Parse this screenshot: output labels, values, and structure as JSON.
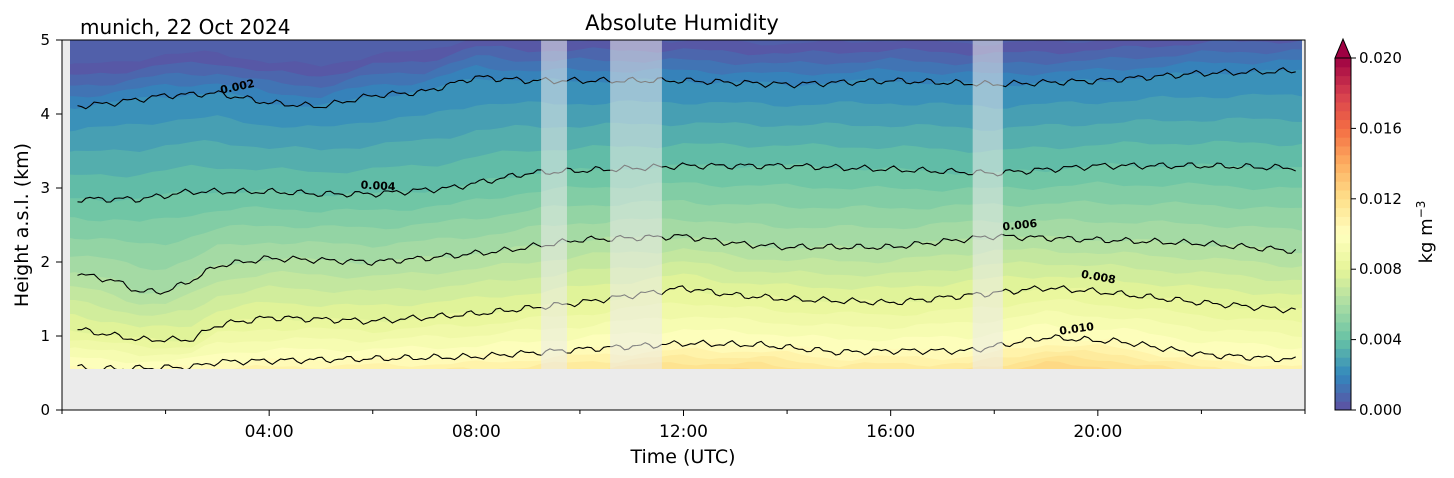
{
  "chart_data": {
    "type": "heatmap",
    "subtype": "filled-contour",
    "title": "Absolute Humidity",
    "location_date": "munich, 22 Oct 2024",
    "xlabel": "Time (UTC)",
    "ylabel": "Height a.s.l. (km)",
    "xlim": [
      "00:00",
      "24:00"
    ],
    "xticks": [
      "04:00",
      "08:00",
      "12:00",
      "16:00",
      "20:00"
    ],
    "ylim": [
      0,
      5
    ],
    "yticks": [
      "0",
      "1",
      "2",
      "3",
      "4",
      "5"
    ],
    "data_bottom_km": 0.55,
    "colorbar": {
      "label": "kg m",
      "label_exponent": "−3",
      "range": [
        0.0,
        0.02
      ],
      "ticks": [
        "0.000",
        "0.004",
        "0.008",
        "0.012",
        "0.016",
        "0.020"
      ],
      "colormap": "Spectral_r",
      "extend": "max"
    },
    "contour_labels": [
      "0.002",
      "0.004",
      "0.006",
      "0.008",
      "0.010"
    ],
    "contour_levels": [
      {
        "level": "0.002",
        "height_km": [
          [
            0.2,
            4.1
          ],
          [
            1.0,
            4.15
          ],
          [
            2.0,
            4.25
          ],
          [
            3.0,
            4.28
          ],
          [
            4.0,
            4.15
          ],
          [
            5.0,
            4.1
          ],
          [
            6.0,
            4.25
          ],
          [
            7.0,
            4.3
          ],
          [
            8.0,
            4.5
          ],
          [
            9.0,
            4.45
          ],
          [
            12.0,
            4.45
          ],
          [
            14.0,
            4.4
          ],
          [
            16.0,
            4.45
          ],
          [
            18.0,
            4.4
          ],
          [
            20.0,
            4.45
          ],
          [
            22.0,
            4.55
          ],
          [
            23.8,
            4.58
          ]
        ]
      },
      {
        "level": "0.004",
        "height_km": [
          [
            0.2,
            2.85
          ],
          [
            1.5,
            2.85
          ],
          [
            2.5,
            2.95
          ],
          [
            4.0,
            2.95
          ],
          [
            5.0,
            2.92
          ],
          [
            6.0,
            2.92
          ],
          [
            7.5,
            3.0
          ],
          [
            9.0,
            3.2
          ],
          [
            10.5,
            3.25
          ],
          [
            12.0,
            3.3
          ],
          [
            14.0,
            3.3
          ],
          [
            16.0,
            3.25
          ],
          [
            18.0,
            3.2
          ],
          [
            20.0,
            3.3
          ],
          [
            22.0,
            3.3
          ],
          [
            23.8,
            3.27
          ]
        ]
      },
      {
        "level": "0.006",
        "height_km": [
          [
            0.2,
            1.85
          ],
          [
            1.0,
            1.75
          ],
          [
            1.5,
            1.6
          ],
          [
            2.0,
            1.6
          ],
          [
            2.5,
            1.75
          ],
          [
            3.0,
            1.95
          ],
          [
            4.0,
            2.05
          ],
          [
            6.0,
            2.0
          ],
          [
            7.0,
            2.05
          ],
          [
            8.5,
            2.15
          ],
          [
            10.0,
            2.3
          ],
          [
            12.0,
            2.35
          ],
          [
            13.0,
            2.25
          ],
          [
            14.0,
            2.2
          ],
          [
            16.0,
            2.2
          ],
          [
            18.0,
            2.35
          ],
          [
            20.0,
            2.3
          ],
          [
            22.0,
            2.25
          ],
          [
            23.8,
            2.15
          ]
        ]
      },
      {
        "level": "0.008",
        "height_km": [
          [
            0.2,
            1.1
          ],
          [
            1.5,
            0.95
          ],
          [
            2.5,
            0.95
          ],
          [
            3.0,
            1.15
          ],
          [
            4.0,
            1.25
          ],
          [
            6.0,
            1.2
          ],
          [
            8.0,
            1.3
          ],
          [
            10.0,
            1.45
          ],
          [
            12.0,
            1.65
          ],
          [
            13.0,
            1.55
          ],
          [
            14.0,
            1.5
          ],
          [
            16.0,
            1.45
          ],
          [
            17.5,
            1.55
          ],
          [
            19.0,
            1.65
          ],
          [
            20.0,
            1.6
          ],
          [
            22.0,
            1.45
          ],
          [
            23.8,
            1.35
          ]
        ]
      },
      {
        "level": "0.010",
        "height_km": [
          [
            0.2,
            0.58
          ],
          [
            0.6,
            0.55
          ],
          [
            2.5,
            0.58
          ],
          [
            3.0,
            0.65
          ],
          [
            5.0,
            0.68
          ],
          [
            8.0,
            0.72
          ],
          [
            10.0,
            0.82
          ],
          [
            12.0,
            0.9
          ],
          [
            13.5,
            0.88
          ],
          [
            15.0,
            0.78
          ],
          [
            16.0,
            0.8
          ],
          [
            17.5,
            0.8
          ],
          [
            19.0,
            0.98
          ],
          [
            20.5,
            0.92
          ],
          [
            22.0,
            0.75
          ],
          [
            23.8,
            0.68
          ]
        ]
      }
    ],
    "missing_data_intervals_utc": [
      [
        "09:15",
        "09:45"
      ],
      [
        "10:35",
        "11:35"
      ],
      [
        "17:35",
        "18:10"
      ]
    ]
  }
}
